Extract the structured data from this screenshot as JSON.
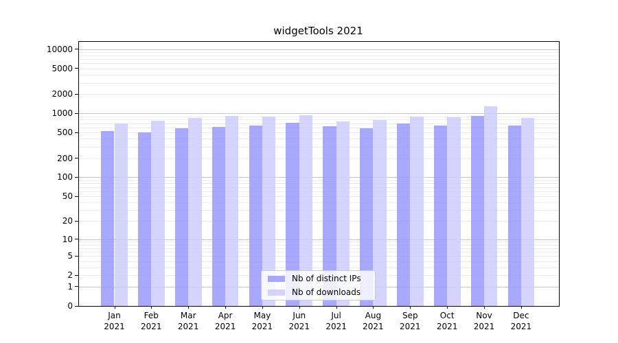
{
  "title": "widgetTools 2021",
  "colors": {
    "ips_bar": "#9999ff",
    "downloads_bar": "#ccccff",
    "bar_alpha": 0.85,
    "grid_major": "#c6c6c6",
    "grid_minor": "#ececec",
    "axis": "#000000"
  },
  "legend": {
    "entries": [
      {
        "label": "Nb of distinct IPs"
      },
      {
        "label": "Nb of downloads"
      }
    ]
  },
  "chart_data": {
    "type": "bar",
    "title": "widgetTools 2021",
    "categories": [
      "Jan",
      "Feb",
      "Mar",
      "Apr",
      "May",
      "Jun",
      "Jul",
      "Aug",
      "Sep",
      "Oct",
      "Nov",
      "Dec"
    ],
    "year_label": "2021",
    "series": [
      {
        "name": "Nb of distinct IPs",
        "color": "#9999ff",
        "values": [
          525,
          505,
          585,
          620,
          640,
          710,
          630,
          580,
          690,
          640,
          920,
          640
        ]
      },
      {
        "name": "Nb of downloads",
        "color": "#ccccff",
        "values": [
          695,
          770,
          855,
          905,
          885,
          940,
          755,
          790,
          885,
          870,
          1275,
          855
        ]
      }
    ],
    "y_ticks": [
      0,
      1,
      2,
      5,
      10,
      20,
      50,
      100,
      200,
      500,
      1000,
      2000,
      5000,
      10000
    ],
    "y_scale": "log10(1+y)",
    "y_max": 13000,
    "grid": true,
    "legend_position": "lower center inside plot",
    "xlabel": "",
    "ylabel": ""
  }
}
